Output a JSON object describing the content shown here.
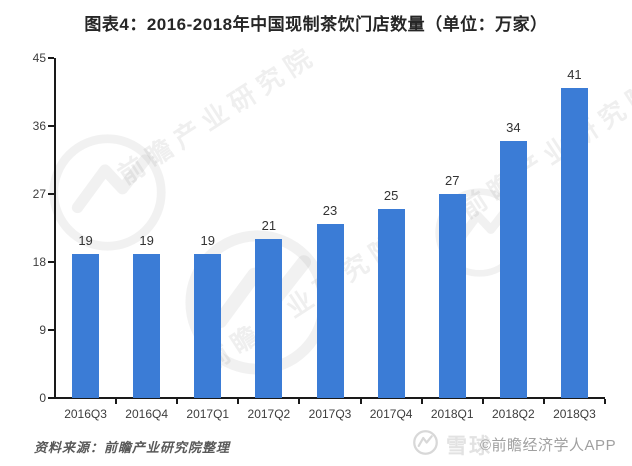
{
  "header": {
    "title": "图表4：2016-2018年中国现制茶饮门店数量（单位：万家）"
  },
  "footer": {
    "source_note": "资料来源：前瞻产业研究院整理"
  },
  "watermarks": {
    "diagonal_text": "前瞻产业研究院",
    "brand_text": "雪球",
    "copyright_text": "©前瞻经济学人APP"
  },
  "colors": {
    "bar": "#3B7CD6",
    "axis": "#1A1A1A",
    "tick_label": "#3D3D3D",
    "value_label": "#333333",
    "title": "#262626",
    "source": "#595959"
  },
  "chart_data": {
    "type": "bar",
    "title": "图表4：2016-2018年中国现制茶饮门店数量（单位：万家）",
    "unit": "万家",
    "categories": [
      "2016Q3",
      "2016Q4",
      "2017Q1",
      "2017Q2",
      "2017Q3",
      "2017Q4",
      "2018Q1",
      "2018Q2",
      "2018Q3"
    ],
    "values": [
      19,
      19,
      19,
      21,
      23,
      25,
      27,
      34,
      41
    ],
    "ylabel": "",
    "xlabel": "",
    "ylim": [
      0,
      45
    ],
    "yticks": [
      0,
      9,
      18,
      27,
      36,
      45
    ],
    "grid": false,
    "legend": false,
    "value_labels": true,
    "bar_color": "#3B7CD6"
  }
}
